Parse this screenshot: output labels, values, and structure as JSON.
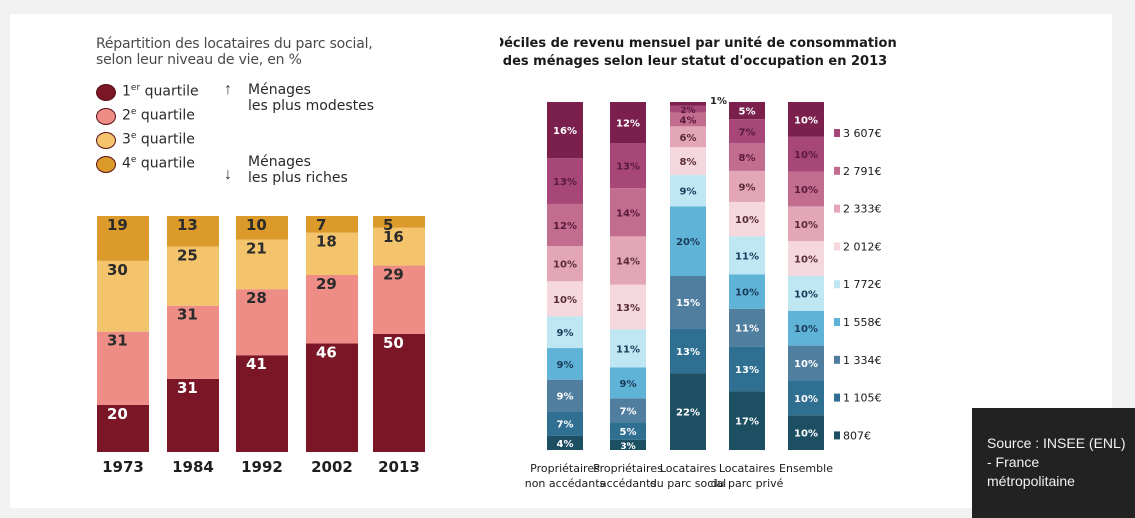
{
  "source": "Source : INSEE (ENL) - France métropolitaine",
  "chart_data": [
    {
      "type": "bar",
      "stacked": true,
      "title": "Répartition des locataires du parc social, selon leur niveau de vie, en %",
      "title_lines": [
        "Répartition des locataires du parc social,",
        "selon leur niveau de vie, en %"
      ],
      "legend": [
        {
          "sup": "er",
          "label": "quartile",
          "prefix": "1",
          "color": "#7a1626"
        },
        {
          "sup": "e",
          "label": "quartile",
          "prefix": "2",
          "color": "#ed8d86"
        },
        {
          "sup": "e",
          "label": "quartile",
          "prefix": "3",
          "color": "#f3c46b"
        },
        {
          "sup": "e",
          "label": "quartile",
          "prefix": "4",
          "color": "#dc9a2b"
        }
      ],
      "notes": {
        "top": [
          "Ménages",
          "les plus modestes"
        ],
        "bottom": [
          "Ménages",
          "les plus riches"
        ]
      },
      "categories": [
        "1973",
        "1984",
        "1992",
        "2002",
        "2013"
      ],
      "series": [
        {
          "name": "1er quartile",
          "color": "#7a1626",
          "values": [
            20,
            31,
            41,
            46,
            50
          ]
        },
        {
          "name": "2e quartile",
          "color": "#ed8d86",
          "values": [
            31,
            31,
            28,
            29,
            29
          ]
        },
        {
          "name": "3e quartile",
          "color": "#f3c46b",
          "values": [
            30,
            25,
            21,
            18,
            16
          ]
        },
        {
          "name": "4e quartile",
          "color": "#dc9a2b",
          "values": [
            19,
            13,
            10,
            7,
            5
          ]
        }
      ],
      "ylim": [
        0,
        100
      ]
    },
    {
      "type": "bar",
      "stacked": true,
      "title": "Déciles de revenu mensuel par unité de consommation des ménages selon leur statut d'occupation en 2013",
      "title_lines": [
        "Déciles de revenu mensuel par unité de consommation",
        "des ménages selon leur statut d'occupation en 2013"
      ],
      "categories": [
        [
          "Propriétaires",
          "non accédants"
        ],
        [
          "Propriétaires",
          "accédants"
        ],
        [
          "Locataires",
          "du parc social"
        ],
        [
          "Locataires",
          "du parc privé"
        ],
        [
          "Ensemble"
        ]
      ],
      "legend_position": "right",
      "series": [
        {
          "name": "807€",
          "color": "#1d4f63",
          "values": [
            4,
            3,
            22,
            17,
            10
          ]
        },
        {
          "name": "1 105€",
          "color": "#2f6f92",
          "values": [
            7,
            5,
            13,
            13,
            10
          ]
        },
        {
          "name": "1 334€",
          "color": "#4f7e9f",
          "values": [
            9,
            7,
            15,
            11,
            10
          ]
        },
        {
          "name": "1 558€",
          "color": "#5fb3d6",
          "values": [
            9,
            9,
            20,
            10,
            10
          ]
        },
        {
          "name": "1 772€",
          "color": "#bfe6f3",
          "values": [
            9,
            11,
            9,
            11,
            10
          ]
        },
        {
          "name": "2 012€",
          "color": "#f4d8dd",
          "values": [
            10,
            13,
            8,
            10,
            10
          ]
        },
        {
          "name": "2 333€",
          "color": "#e2a6b7",
          "values": [
            10,
            14,
            6,
            9,
            10
          ]
        },
        {
          "name": "2 791€",
          "color": "#c26c8e",
          "values": [
            12,
            14,
            4,
            8,
            10
          ]
        },
        {
          "name": "3 607€",
          "color": "#a64777",
          "values": [
            13,
            13,
            2,
            7,
            10
          ]
        },
        {
          "name": "",
          "color": "#7b1f4c",
          "values": [
            16,
            12,
            1,
            5,
            10
          ]
        }
      ],
      "value_labels": [
        [
          "4%",
          "7%",
          "9%",
          "9%",
          "9%",
          "10%",
          "10%",
          "12%",
          "13%",
          "16%"
        ],
        [
          "3%",
          "5%",
          "7%",
          "9%",
          "11%",
          "13%",
          "14%",
          "14%",
          "13%",
          "12%"
        ],
        [
          "22%",
          "13%",
          "15%",
          "20%",
          "9%",
          "8%",
          "6%",
          "4%",
          "2%",
          "1%"
        ],
        [
          "17%",
          "13%",
          "11%",
          "10%",
          "11%",
          "10%",
          "9%",
          "8%",
          "7%",
          "5%"
        ],
        [
          "10%",
          "10%",
          "10%",
          "10%",
          "10%",
          "10%",
          "10%",
          "10%",
          "10%",
          "10%"
        ]
      ],
      "ylim": [
        0,
        100
      ]
    }
  ]
}
